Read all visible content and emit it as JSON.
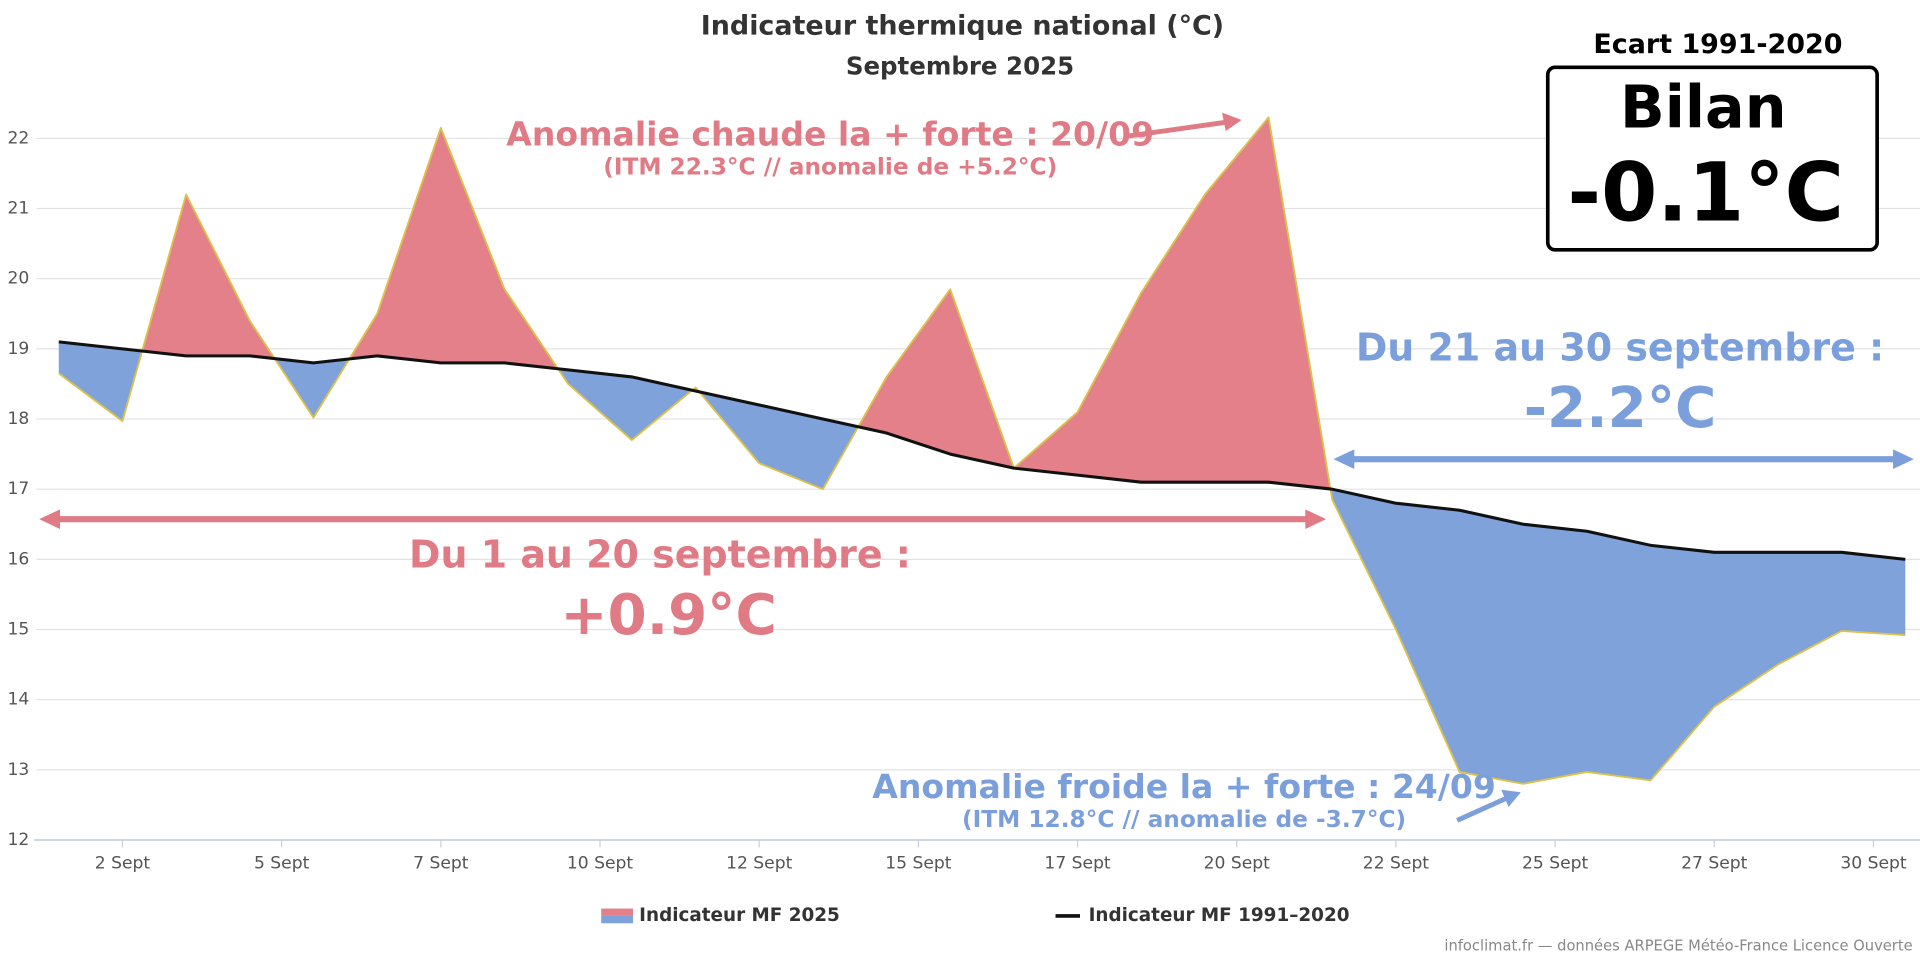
{
  "chart_data": {
    "type": "area",
    "title": "Indicateur thermique national (°C)",
    "subtitle": "Septembre 2025",
    "x": [
      1,
      2,
      3,
      4,
      5,
      6,
      7,
      8,
      9,
      10,
      11,
      12,
      13,
      14,
      15,
      16,
      17,
      18,
      19,
      20,
      21,
      22,
      23,
      24,
      25,
      26,
      27,
      28,
      29,
      30
    ],
    "xlim": [
      0.65,
      30.2
    ],
    "xticks": [
      {
        "value": 2,
        "label": "2 Sept"
      },
      {
        "value": 4.5,
        "label": "5 Sept"
      },
      {
        "value": 7,
        "label": "7 Sept"
      },
      {
        "value": 9.5,
        "label": "10 Sept"
      },
      {
        "value": 12,
        "label": "12 Sept"
      },
      {
        "value": 14.5,
        "label": "15 Sept"
      },
      {
        "value": 17,
        "label": "17 Sept"
      },
      {
        "value": 19.5,
        "label": "20 Sept"
      },
      {
        "value": 22,
        "label": "22 Sept"
      },
      {
        "value": 24.5,
        "label": "25 Sept"
      },
      {
        "value": 27,
        "label": "27 Sept"
      },
      {
        "value": 29.5,
        "label": "30 Sept"
      }
    ],
    "ylim": [
      12,
      22.5
    ],
    "yticks": [
      12,
      13,
      14,
      15,
      16,
      17,
      18,
      19,
      20,
      21,
      22
    ],
    "grid": true,
    "fill_above": "#e3808a",
    "fill_below": "#80a2db",
    "series": [
      {
        "name": "Indicateur MF 2025",
        "color": "#dcc24a",
        "values": [
          18.65,
          17.97,
          21.2,
          19.4,
          18.02,
          19.5,
          22.15,
          19.85,
          18.5,
          17.7,
          18.45,
          17.37,
          17.0,
          18.6,
          19.85,
          17.3,
          18.1,
          19.8,
          21.2,
          22.3,
          16.85,
          15.0,
          12.97,
          12.8,
          12.97,
          12.85,
          13.9,
          14.5,
          14.98,
          14.92
        ]
      },
      {
        "name": "Indicateur MF 1991–2020",
        "color": "#111111",
        "values": [
          19.1,
          19.0,
          18.9,
          18.9,
          18.8,
          18.9,
          18.8,
          18.8,
          18.7,
          18.6,
          18.4,
          18.2,
          18.0,
          17.8,
          17.5,
          17.3,
          17.2,
          17.1,
          17.1,
          17.1,
          17.0,
          16.8,
          16.7,
          16.5,
          16.4,
          16.2,
          16.1,
          16.1,
          16.1,
          16.0
        ]
      }
    ],
    "annotations": {
      "warm_title": "Anomalie chaude la + forte : 20/09",
      "warm_detail": "(ITM 22.3°C // anomalie de +5.2°C)",
      "warm_period": "Du 1 au 20 septembre :",
      "warm_period_value": "+0.9°C",
      "cold_title": "Anomalie froide la + forte : 24/09",
      "cold_detail": "(ITM 12.8°C // anomalie de -3.7°C)",
      "cold_period": "Du 21 au 30 septembre :",
      "cold_period_value": "-2.2°C"
    },
    "summary": {
      "header": "Ecart 1991-2020",
      "title": "Bilan",
      "value": "-0.1°C"
    },
    "credit": "infoclimat.fr — données ARPEGE Météo-France Licence Ouverte"
  }
}
